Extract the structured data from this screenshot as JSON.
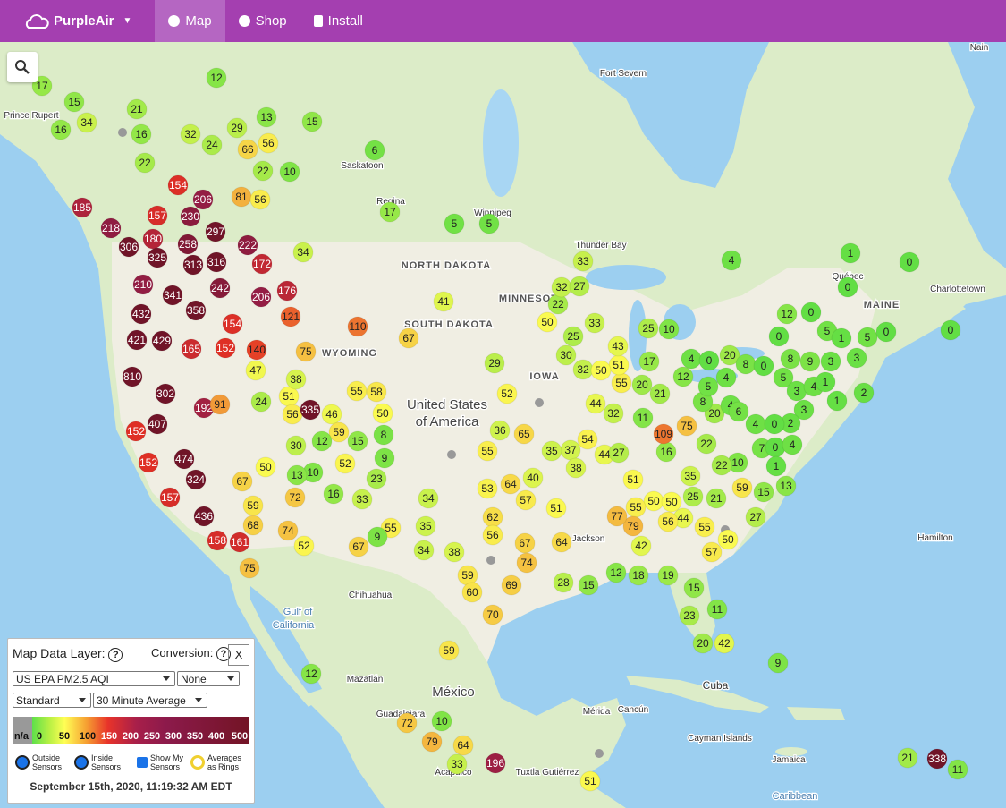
{
  "nav": {
    "brand": "PurpleAir",
    "items": [
      "Map",
      "Shop",
      "Install"
    ]
  },
  "panel": {
    "layer_label": "Map Data Layer:",
    "help": "?",
    "conversion_label": "Conversion:",
    "close": "X",
    "layer": "US EPA PM2.5 AQI",
    "conversion": "None",
    "mode": "Standard",
    "average": "30 Minute Average",
    "scale": [
      "n/a",
      "0",
      "50",
      "100",
      "150",
      "200",
      "250",
      "300",
      "350",
      "400",
      "500"
    ],
    "checks": [
      "Outside Sensors",
      "Inside Sensors",
      "Show My Sensors",
      "Averages as Rings"
    ],
    "timestamp": "September 15th, 2020, 11:19:32 AM EDT"
  },
  "places": [
    "Nain",
    "Fort Severn",
    "Prince Rupert",
    "Saskatoon",
    "Regina",
    "Winnipeg",
    "Thunder Bay",
    "NORTH DAKOTA",
    "MINNESOTA",
    "SOUTH DAKOTA",
    "WYOMING",
    "IOWA",
    "United States",
    "of America",
    "Charlottetown",
    "MAINE",
    "Québec",
    "Hamilton",
    "Chihuahua",
    "Gulf of",
    "California",
    "Mazatlán",
    "México",
    "Guadalajara",
    "Mérida",
    "Cancún",
    "Cuba",
    "Cayman Islands",
    "Jamaica",
    "Caribbean",
    "Tuxtla Gutiérrez",
    "Acapulco",
    "Jackson"
  ],
  "sensors": [
    17,
    15,
    34,
    16,
    12,
    21,
    13,
    15,
    16,
    32,
    29,
    24,
    66,
    56,
    22,
    22,
    10,
    6,
    154,
    206,
    81,
    56,
    185,
    157,
    230,
    218,
    306,
    180,
    258,
    297,
    222,
    325,
    313,
    316,
    172,
    210,
    341,
    242,
    206,
    176,
    358,
    432,
    154,
    121,
    421,
    429,
    165,
    152,
    140,
    810,
    302,
    192,
    91,
    407,
    152,
    474,
    152,
    324,
    157,
    436,
    158,
    161,
    75,
    67,
    72,
    59,
    68,
    74,
    52,
    51,
    38,
    56,
    335,
    46,
    24,
    47,
    75,
    110,
    67,
    41,
    34,
    17,
    5,
    5,
    55,
    58,
    50,
    59,
    15,
    8,
    12,
    30,
    52,
    9,
    10,
    13,
    50,
    23,
    16,
    33,
    29,
    52,
    36,
    65,
    55,
    34,
    35,
    34,
    55,
    9,
    67,
    38,
    53,
    64,
    40,
    57,
    62,
    56,
    67,
    64,
    74,
    59,
    69,
    60,
    70,
    59,
    28,
    15,
    12,
    18,
    19,
    15,
    11,
    23,
    20,
    42,
    9,
    12,
    72,
    10,
    79,
    64,
    33,
    196,
    51,
    21,
    338,
    11,
    4,
    1,
    0,
    0,
    12,
    0,
    0,
    5,
    1,
    5,
    0,
    0,
    20,
    8,
    0,
    8,
    9,
    3,
    3,
    2,
    5,
    3,
    4,
    1,
    1,
    3,
    4,
    2,
    0,
    7,
    0,
    4,
    1,
    13,
    15,
    10,
    22,
    59,
    27,
    50,
    57,
    55,
    44,
    56,
    21,
    25,
    35,
    50,
    50,
    51,
    55,
    79,
    77,
    42,
    16,
    22,
    109,
    75,
    11,
    20,
    4,
    6,
    8,
    5,
    4,
    12,
    4,
    0,
    21,
    20,
    55,
    51,
    17,
    32,
    50,
    43,
    25,
    10,
    33,
    30,
    25,
    50,
    22,
    32,
    27,
    33,
    44,
    32,
    54,
    37,
    35,
    38,
    44,
    27,
    51
  ]
}
